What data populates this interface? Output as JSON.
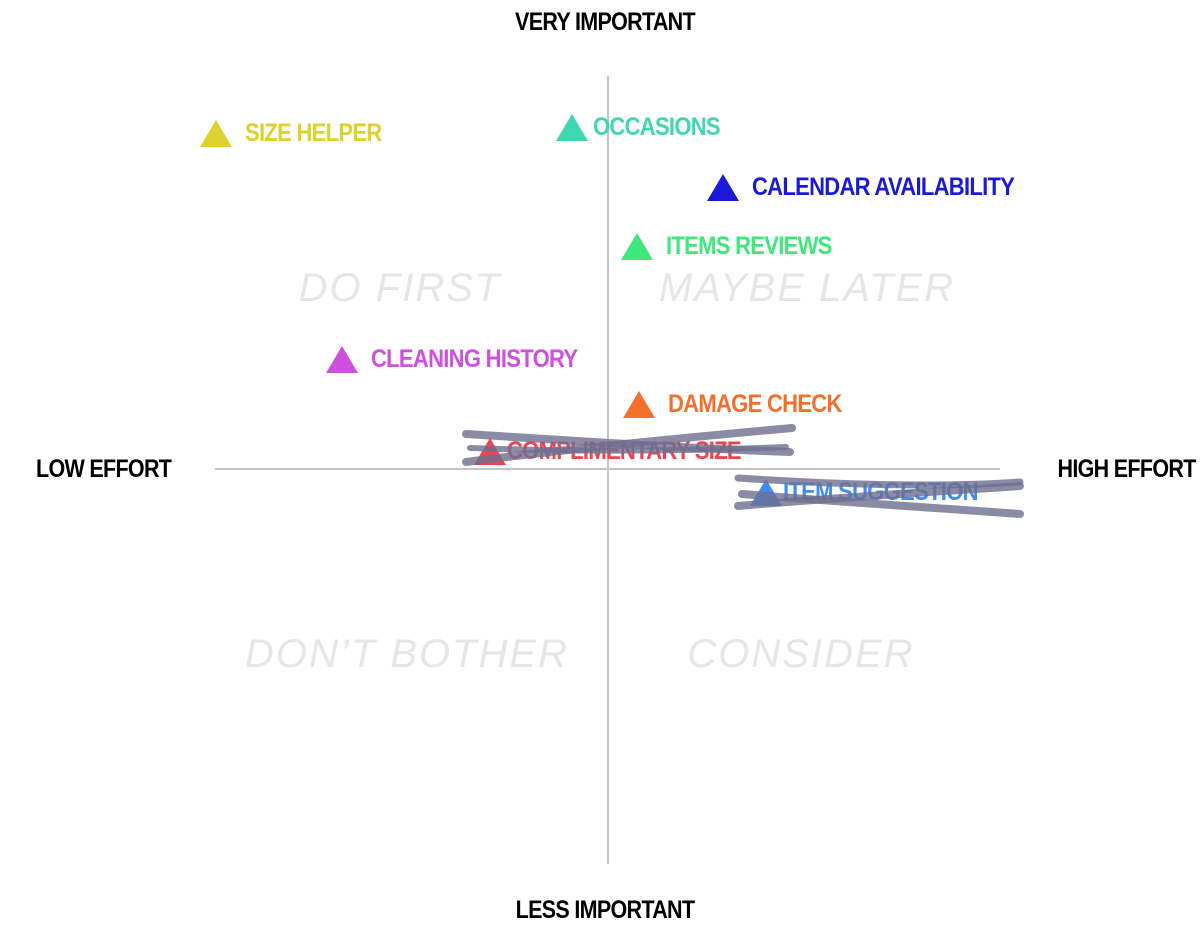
{
  "axes": {
    "top": "VERY IMPORTANT",
    "bottom": "LESS IMPORTANT",
    "left": "LOW EFFORT",
    "right": "HIGH EFFORT"
  },
  "quadrants": {
    "top_left": "DO FIRST",
    "top_right": "MAYBE LATER",
    "bottom_left": "DON’T BOTHER",
    "bottom_right": "CONSIDER"
  },
  "features": [
    {
      "label": "SIZE HELPER",
      "color": "#ddd130",
      "crossed_out": false
    },
    {
      "label": "OCCASIONS",
      "color": "#3fd6b4",
      "crossed_out": false
    },
    {
      "label": "CALENDAR AVAILABILITY",
      "color": "#1a1ad6",
      "crossed_out": false
    },
    {
      "label": "ITEMS REVIEWS",
      "color": "#3ee87a",
      "crossed_out": false
    },
    {
      "label": "CLEANING HISTORY",
      "color": "#cf4fe0",
      "crossed_out": false
    },
    {
      "label": "DAMAGE CHECK",
      "color": "#f46f2c",
      "crossed_out": false
    },
    {
      "label": "COMPLIMENTARY SIZE",
      "color": "#f0434c",
      "crossed_out": true
    },
    {
      "label": "ITEM SUGGESTION",
      "color": "#3d8cf0",
      "crossed_out": true
    }
  ],
  "colors": {
    "axis_line": "#c4c4c4",
    "quadrant_text": "#e6e6e6",
    "scribble": "#6e6e90"
  }
}
